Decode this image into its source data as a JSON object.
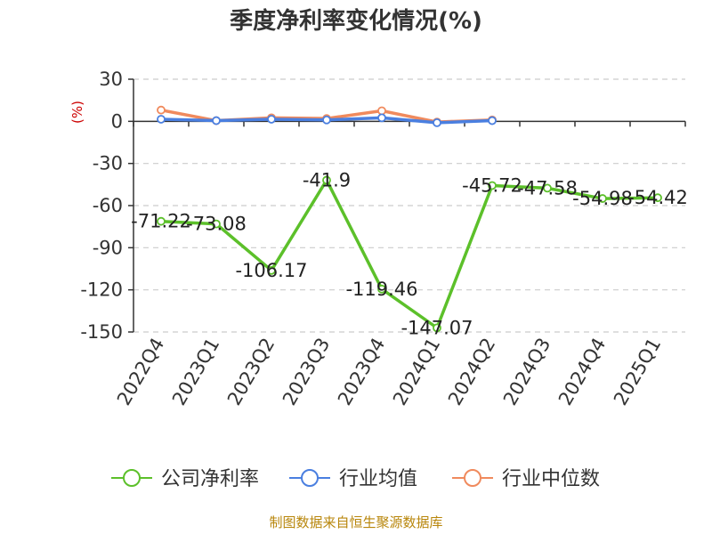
{
  "chart_data": {
    "type": "line",
    "title": "季度净利率变化情况(%)",
    "ylabel": "(%)",
    "xlabel": "",
    "categories": [
      "2022Q4",
      "2023Q1",
      "2023Q2",
      "2023Q3",
      "2023Q4",
      "2024Q1",
      "2024Q2",
      "2024Q3",
      "2024Q4",
      "2025Q1"
    ],
    "ylim": [
      -150,
      30
    ],
    "yticks": [
      30,
      0,
      -30,
      -60,
      -90,
      -120,
      -150
    ],
    "grid": true,
    "legend_position": "bottom",
    "series": [
      {
        "name": "公司净利率",
        "color": "#5cc02a",
        "values": [
          -71.22,
          -73.08,
          -106.17,
          -41.9,
          -119.46,
          -147.07,
          -45.72,
          -47.58,
          -54.98,
          -54.42
        ],
        "labels": [
          "-71.22",
          "-73.08",
          "-106.17",
          "-41.9",
          "-119.46",
          "-147.07",
          "-45.72",
          "-47.58",
          "-54.98",
          "-54.42"
        ]
      },
      {
        "name": "行业均值",
        "color": "#4a7fe0",
        "values": [
          1.5,
          0.5,
          1.5,
          1.0,
          2.5,
          -1.0,
          0.5,
          null,
          null,
          null
        ]
      },
      {
        "name": "行业中位数",
        "color": "#f08a5d",
        "values": [
          8.0,
          0.5,
          2.5,
          2.0,
          7.5,
          -0.5,
          1.0,
          null,
          null,
          null
        ]
      }
    ]
  },
  "footer": {
    "source": "制图数据来自恒生聚源数据库"
  }
}
